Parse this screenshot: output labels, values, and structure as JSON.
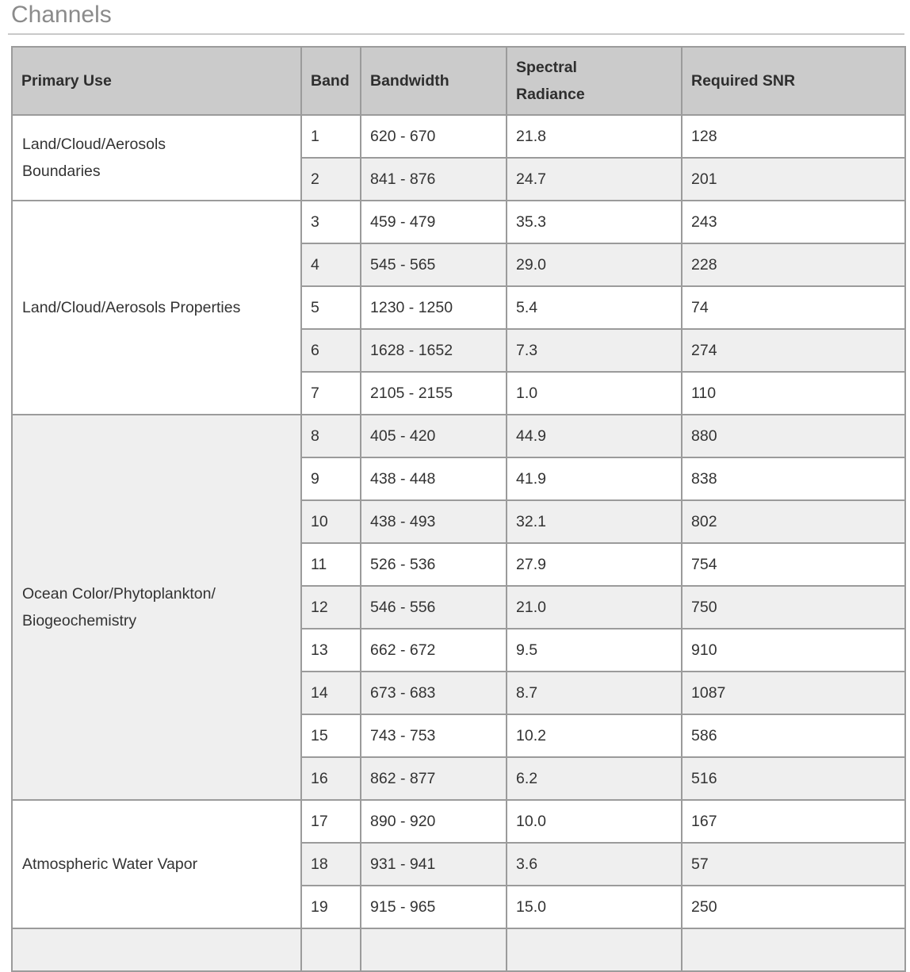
{
  "page": {
    "title": "Channels"
  },
  "colors": {
    "heading_text": "#8b8b8b",
    "heading_rule": "#c9c9c9",
    "header_bg": "#cbcbcb",
    "row_bg": "#ffffff",
    "row_alt_bg": "#efefef",
    "border": "#9b9b9b",
    "cell_text": "#333333"
  },
  "table": {
    "headers": [
      "Primary Use",
      "Band",
      "Bandwidth",
      "Spectral\nRadiance",
      "Required SNR"
    ],
    "sections": [
      {
        "primary_use": "Land/Cloud/Aerosols\nBoundaries",
        "rows": [
          {
            "band": "1",
            "bandwidth": "620 - 670",
            "spectral_radiance": "21.8",
            "required_snr": "128"
          },
          {
            "band": "2",
            "bandwidth": "841 - 876",
            "spectral_radiance": "24.7",
            "required_snr": "201"
          }
        ]
      },
      {
        "primary_use": "Land/Cloud/Aerosols Properties",
        "rows": [
          {
            "band": "3",
            "bandwidth": "459 - 479",
            "spectral_radiance": "35.3",
            "required_snr": "243"
          },
          {
            "band": "4",
            "bandwidth": "545 - 565",
            "spectral_radiance": "29.0",
            "required_snr": "228"
          },
          {
            "band": "5",
            "bandwidth": "1230 - 1250",
            "spectral_radiance": "5.4",
            "required_snr": "74"
          },
          {
            "band": "6",
            "bandwidth": "1628 - 1652",
            "spectral_radiance": "7.3",
            "required_snr": "274"
          },
          {
            "band": "7",
            "bandwidth": "2105 - 2155",
            "spectral_radiance": "1.0",
            "required_snr": "110"
          }
        ]
      },
      {
        "primary_use": "Ocean Color/Phytoplankton/\nBiogeochemistry",
        "rows": [
          {
            "band": "8",
            "bandwidth": "405 - 420",
            "spectral_radiance": "44.9",
            "required_snr": "880"
          },
          {
            "band": "9",
            "bandwidth": "438 - 448",
            "spectral_radiance": "41.9",
            "required_snr": "838"
          },
          {
            "band": "10",
            "bandwidth": "438 - 493",
            "spectral_radiance": "32.1",
            "required_snr": "802"
          },
          {
            "band": "11",
            "bandwidth": "526 - 536",
            "spectral_radiance": "27.9",
            "required_snr": "754"
          },
          {
            "band": "12",
            "bandwidth": "546 - 556",
            "spectral_radiance": "21.0",
            "required_snr": "750"
          },
          {
            "band": "13",
            "bandwidth": "662 - 672",
            "spectral_radiance": "9.5",
            "required_snr": "910"
          },
          {
            "band": "14",
            "bandwidth": "673 - 683",
            "spectral_radiance": "8.7",
            "required_snr": "1087"
          },
          {
            "band": "15",
            "bandwidth": "743 - 753",
            "spectral_radiance": "10.2",
            "required_snr": "586"
          },
          {
            "band": "16",
            "bandwidth": "862 - 877",
            "spectral_radiance": "6.2",
            "required_snr": "516"
          }
        ]
      },
      {
        "primary_use": "Atmospheric Water Vapor",
        "rows": [
          {
            "band": "17",
            "bandwidth": "890 - 920",
            "spectral_radiance": "10.0",
            "required_snr": "167"
          },
          {
            "band": "18",
            "bandwidth": "931 - 941",
            "spectral_radiance": "3.6",
            "required_snr": "57"
          },
          {
            "band": "19",
            "bandwidth": "915 - 965",
            "spectral_radiance": "15.0",
            "required_snr": "250"
          }
        ]
      }
    ]
  }
}
